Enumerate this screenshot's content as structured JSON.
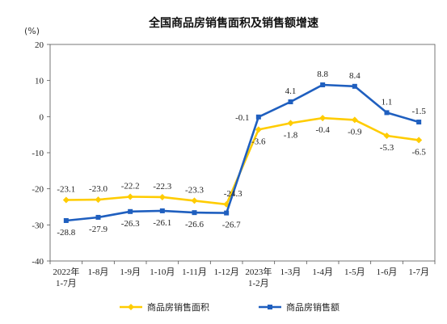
{
  "chart_data": {
    "type": "line",
    "title": "全国商品房销售面积及销售额增速",
    "unit": "(%)",
    "ylim": [
      -40,
      20
    ],
    "yticks": [
      "20",
      "10",
      "0",
      "-10",
      "-20",
      "-30",
      "-40"
    ],
    "categories": [
      [
        "2022年",
        "1-7月"
      ],
      [
        "1-8月"
      ],
      [
        "1-9月"
      ],
      [
        "1-10月"
      ],
      [
        "1-11月"
      ],
      [
        "1-12月"
      ],
      [
        "2023年",
        "1-2月"
      ],
      [
        "1-3月"
      ],
      [
        "1-4月"
      ],
      [
        "1-5月"
      ],
      [
        "1-6月"
      ],
      [
        "1-7月"
      ]
    ],
    "series": [
      {
        "name": "商品房销售面积",
        "color": "#FFCC00",
        "marker": "diamond",
        "values": [
          -23.1,
          -23.0,
          -22.2,
          -22.3,
          -23.3,
          -24.3,
          -3.6,
          -1.8,
          -0.4,
          -0.9,
          -5.3,
          -6.5
        ],
        "labels": [
          "-23.1",
          "-23.0",
          "-22.2",
          "-22.3",
          "-23.3",
          "-24.3",
          "-3.6",
          "-1.8",
          "-0.4",
          "-0.9",
          "-5.3",
          "-6.5"
        ]
      },
      {
        "name": "商品房销售额",
        "color": "#1F5FBF",
        "marker": "square",
        "values": [
          -28.8,
          -27.9,
          -26.3,
          -26.1,
          -26.6,
          -26.7,
          -0.1,
          4.1,
          8.8,
          8.4,
          1.1,
          -1.5
        ],
        "labels": [
          "-28.8",
          "-27.9",
          "-26.3",
          "-26.1",
          "-26.6",
          "-26.7",
          "-0.1",
          "4.1",
          "8.8",
          "8.4",
          "1.1",
          "-1.5"
        ]
      }
    ],
    "legend_position": "bottom"
  }
}
